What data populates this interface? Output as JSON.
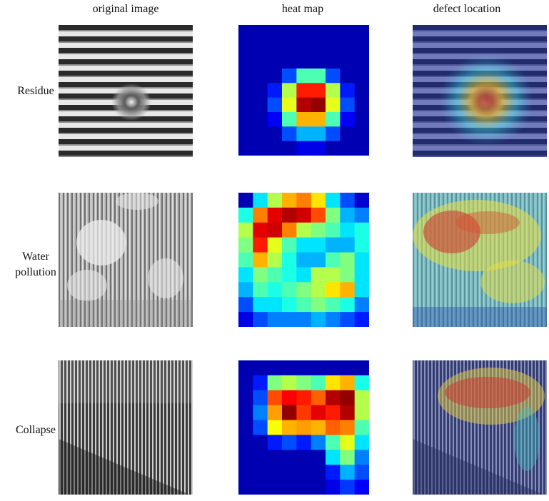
{
  "columns": {
    "original": "original  image",
    "heatmap": "heat  map",
    "overlay": "defect  location"
  },
  "rows": [
    {
      "label_lines": [
        "Residue"
      ]
    },
    {
      "label_lines": [
        "Water",
        "pollution"
      ]
    },
    {
      "label_lines": [
        "Collapse"
      ]
    }
  ],
  "heatmaps": [
    [
      [
        0.05,
        0.05,
        0.05,
        0.05,
        0.05,
        0.05,
        0.05,
        0.05,
        0.05
      ],
      [
        0.05,
        0.05,
        0.05,
        0.05,
        0.05,
        0.05,
        0.05,
        0.05,
        0.05
      ],
      [
        0.05,
        0.05,
        0.05,
        0.05,
        0.05,
        0.05,
        0.05,
        0.05,
        0.05
      ],
      [
        0.05,
        0.05,
        0.05,
        0.2,
        0.45,
        0.45,
        0.2,
        0.05,
        0.05
      ],
      [
        0.05,
        0.05,
        0.15,
        0.55,
        0.85,
        0.85,
        0.55,
        0.15,
        0.05
      ],
      [
        0.05,
        0.05,
        0.2,
        0.6,
        0.95,
        0.98,
        0.6,
        0.2,
        0.05
      ],
      [
        0.05,
        0.05,
        0.12,
        0.45,
        0.7,
        0.7,
        0.45,
        0.12,
        0.05
      ],
      [
        0.05,
        0.05,
        0.05,
        0.2,
        0.3,
        0.3,
        0.2,
        0.05,
        0.05
      ],
      [
        0.05,
        0.05,
        0.05,
        0.05,
        0.1,
        0.1,
        0.05,
        0.05,
        0.05
      ]
    ],
    [
      [
        0.05,
        0.35,
        0.55,
        0.7,
        0.75,
        0.65,
        0.35,
        0.2,
        0.08
      ],
      [
        0.4,
        0.75,
        0.9,
        0.95,
        0.92,
        0.8,
        0.5,
        0.3,
        0.25
      ],
      [
        0.55,
        0.9,
        0.92,
        0.75,
        0.55,
        0.5,
        0.45,
        0.35,
        0.4
      ],
      [
        0.5,
        0.85,
        0.6,
        0.45,
        0.35,
        0.35,
        0.3,
        0.3,
        0.4
      ],
      [
        0.45,
        0.7,
        0.55,
        0.4,
        0.3,
        0.3,
        0.45,
        0.5,
        0.35
      ],
      [
        0.35,
        0.5,
        0.45,
        0.4,
        0.35,
        0.55,
        0.55,
        0.5,
        0.35
      ],
      [
        0.3,
        0.45,
        0.4,
        0.45,
        0.5,
        0.55,
        0.65,
        0.7,
        0.35
      ],
      [
        0.2,
        0.35,
        0.35,
        0.4,
        0.45,
        0.5,
        0.45,
        0.4,
        0.25
      ],
      [
        0.1,
        0.2,
        0.25,
        0.25,
        0.25,
        0.3,
        0.25,
        0.2,
        0.15
      ]
    ],
    [
      [
        0.05,
        0.05,
        0.05,
        0.05,
        0.05,
        0.05,
        0.05,
        0.05,
        0.05
      ],
      [
        0.05,
        0.15,
        0.5,
        0.55,
        0.5,
        0.45,
        0.65,
        0.7,
        0.4
      ],
      [
        0.05,
        0.2,
        0.8,
        0.88,
        0.85,
        0.78,
        0.95,
        0.98,
        0.55
      ],
      [
        0.05,
        0.25,
        0.72,
        0.98,
        0.82,
        0.9,
        0.85,
        0.95,
        0.55
      ],
      [
        0.05,
        0.2,
        0.62,
        0.7,
        0.72,
        0.7,
        0.78,
        0.75,
        0.45
      ],
      [
        0.05,
        0.05,
        0.15,
        0.2,
        0.15,
        0.25,
        0.45,
        0.6,
        0.35
      ],
      [
        0.05,
        0.05,
        0.05,
        0.05,
        0.05,
        0.05,
        0.35,
        0.5,
        0.25
      ],
      [
        0.05,
        0.05,
        0.05,
        0.05,
        0.05,
        0.05,
        0.15,
        0.3,
        0.2
      ],
      [
        0.05,
        0.05,
        0.05,
        0.05,
        0.05,
        0.05,
        0.1,
        0.18,
        0.12
      ]
    ]
  ]
}
